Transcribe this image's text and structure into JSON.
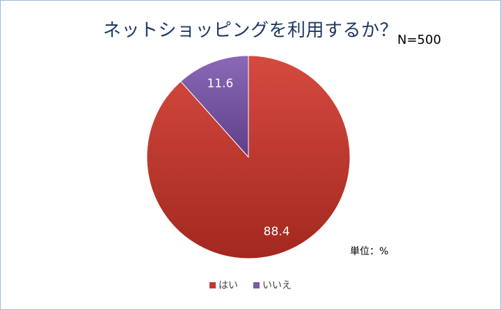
{
  "chart_data": {
    "type": "pie",
    "title": "ネットショッピングを利用するか？",
    "sample_size_label": "N=500",
    "unit_label": "単位：%",
    "categories": [
      "はい",
      "いいえ"
    ],
    "values": [
      88.4,
      11.6
    ],
    "colors": [
      "#c0392f",
      "#7b5aa6"
    ],
    "data_labels": [
      "88.4",
      "11.6"
    ],
    "legend_position": "bottom"
  }
}
